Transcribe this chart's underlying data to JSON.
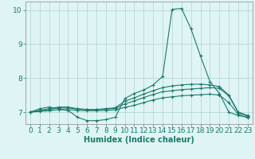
{
  "background_color": "#dff4f4",
  "grid_color": "#b8d8d8",
  "line_color": "#1a7a6a",
  "marker_color": "#1a7a6a",
  "xlabel": "Humidex (Indice chaleur)",
  "xlabel_fontsize": 7,
  "tick_fontsize": 6.5,
  "xlim": [
    -0.5,
    23.5
  ],
  "ylim": [
    6.65,
    10.25
  ],
  "yticks": [
    7,
    8,
    9,
    10
  ],
  "xticks": [
    0,
    1,
    2,
    3,
    4,
    5,
    6,
    7,
    8,
    9,
    10,
    11,
    12,
    13,
    14,
    15,
    16,
    17,
    18,
    19,
    20,
    21,
    22,
    23
  ],
  "line1_x": [
    0,
    1,
    2,
    3,
    4,
    5,
    6,
    7,
    8,
    9,
    10,
    11,
    12,
    13,
    14,
    15,
    16,
    17,
    18,
    19,
    20,
    21,
    22,
    23
  ],
  "line1_y": [
    7.0,
    7.1,
    7.15,
    7.1,
    7.05,
    6.85,
    6.75,
    6.75,
    6.78,
    6.85,
    7.4,
    7.55,
    7.65,
    7.8,
    8.05,
    10.02,
    10.05,
    9.45,
    8.65,
    7.9,
    7.55,
    7.0,
    6.9,
    6.85
  ],
  "line2_x": [
    0,
    1,
    2,
    3,
    4,
    5,
    6,
    7,
    8,
    9,
    10,
    11,
    12,
    13,
    14,
    15,
    16,
    17,
    18,
    19,
    20,
    21,
    22,
    23
  ],
  "line2_y": [
    7.0,
    7.05,
    7.1,
    7.15,
    7.15,
    7.1,
    7.08,
    7.08,
    7.1,
    7.13,
    7.32,
    7.42,
    7.53,
    7.63,
    7.72,
    7.77,
    7.8,
    7.82,
    7.82,
    7.8,
    7.75,
    7.5,
    7.0,
    6.9
  ],
  "line3_x": [
    0,
    1,
    2,
    3,
    4,
    5,
    6,
    7,
    8,
    9,
    10,
    11,
    12,
    13,
    14,
    15,
    16,
    17,
    18,
    19,
    20,
    21,
    22,
    23
  ],
  "line3_y": [
    7.0,
    7.04,
    7.08,
    7.12,
    7.12,
    7.09,
    7.07,
    7.07,
    7.09,
    7.11,
    7.24,
    7.33,
    7.43,
    7.52,
    7.6,
    7.63,
    7.66,
    7.68,
    7.7,
    7.72,
    7.7,
    7.48,
    6.98,
    6.88
  ],
  "line4_x": [
    0,
    1,
    2,
    3,
    4,
    5,
    6,
    7,
    8,
    9,
    10,
    11,
    12,
    13,
    14,
    15,
    16,
    17,
    18,
    19,
    20,
    21,
    22,
    23
  ],
  "line4_y": [
    7.0,
    7.02,
    7.04,
    7.07,
    7.07,
    7.05,
    7.04,
    7.04,
    7.05,
    7.07,
    7.14,
    7.2,
    7.28,
    7.36,
    7.42,
    7.45,
    7.48,
    7.5,
    7.51,
    7.53,
    7.5,
    7.28,
    6.93,
    6.83
  ]
}
